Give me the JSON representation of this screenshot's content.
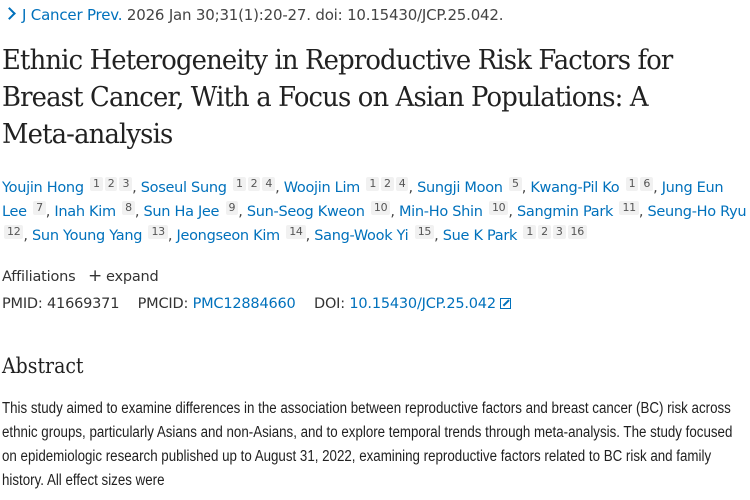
{
  "citation": {
    "journal": "J Cancer Prev.",
    "details": "2026 Jan 30;31(1):20-27. doi: 10.15430/JCP.25.042."
  },
  "title": "Ethnic Heterogeneity in Reproductive Risk Factors for Breast Cancer, With a Focus on Asian Populations: A Meta-analysis",
  "authors": [
    {
      "name": "Youjin Hong",
      "affs": [
        "1",
        "2",
        "3"
      ]
    },
    {
      "name": "Soseul Sung",
      "affs": [
        "1",
        "2",
        "4"
      ]
    },
    {
      "name": "Woojin Lim",
      "affs": [
        "1",
        "2",
        "4"
      ]
    },
    {
      "name": "Sungji Moon",
      "affs": [
        "5"
      ]
    },
    {
      "name": "Kwang-Pil Ko",
      "affs": [
        "1",
        "6"
      ]
    },
    {
      "name": "Jung Eun Lee",
      "affs": [
        "7"
      ]
    },
    {
      "name": "Inah Kim",
      "affs": [
        "8"
      ]
    },
    {
      "name": "Sun Ha Jee",
      "affs": [
        "9"
      ]
    },
    {
      "name": "Sun-Seog Kweon",
      "affs": [
        "10"
      ]
    },
    {
      "name": "Min-Ho Shin",
      "affs": [
        "10"
      ]
    },
    {
      "name": "Sangmin Park",
      "affs": [
        "11"
      ]
    },
    {
      "name": "Seung-Ho Ryu",
      "affs": [
        "12"
      ]
    },
    {
      "name": "Sun Young Yang",
      "affs": [
        "13"
      ]
    },
    {
      "name": "Jeongseon Kim",
      "affs": [
        "14"
      ]
    },
    {
      "name": "Sang-Wook Yi",
      "affs": [
        "15"
      ]
    },
    {
      "name": "Sue K Park",
      "affs": [
        "1",
        "2",
        "3",
        "16"
      ]
    }
  ],
  "affiliations": {
    "label": "Affiliations",
    "expand_icon": "plus-icon",
    "expand_label": "expand"
  },
  "ids": {
    "pmid_label": "PMID:",
    "pmid": "41669371",
    "pmcid_label": "PMCID:",
    "pmcid": "PMC12884660",
    "doi_label": "DOI:",
    "doi": "10.15430/JCP.25.042",
    "doi_icon": "external-link-icon"
  },
  "abstract": {
    "heading": "Abstract",
    "text": "This study aimed to examine differences in the association between reproductive factors and breast cancer (BC) risk across ethnic groups, particularly Asians and non-Asians, and to explore temporal trends through meta-analysis. The study focused on epidemiologic research published up to August 31, 2022, examining reproductive factors related to BC risk and family history. All effect sizes were"
  },
  "colors": {
    "link": "#0071bc",
    "text": "#212121",
    "sup_bg": "#f1f1f1"
  }
}
